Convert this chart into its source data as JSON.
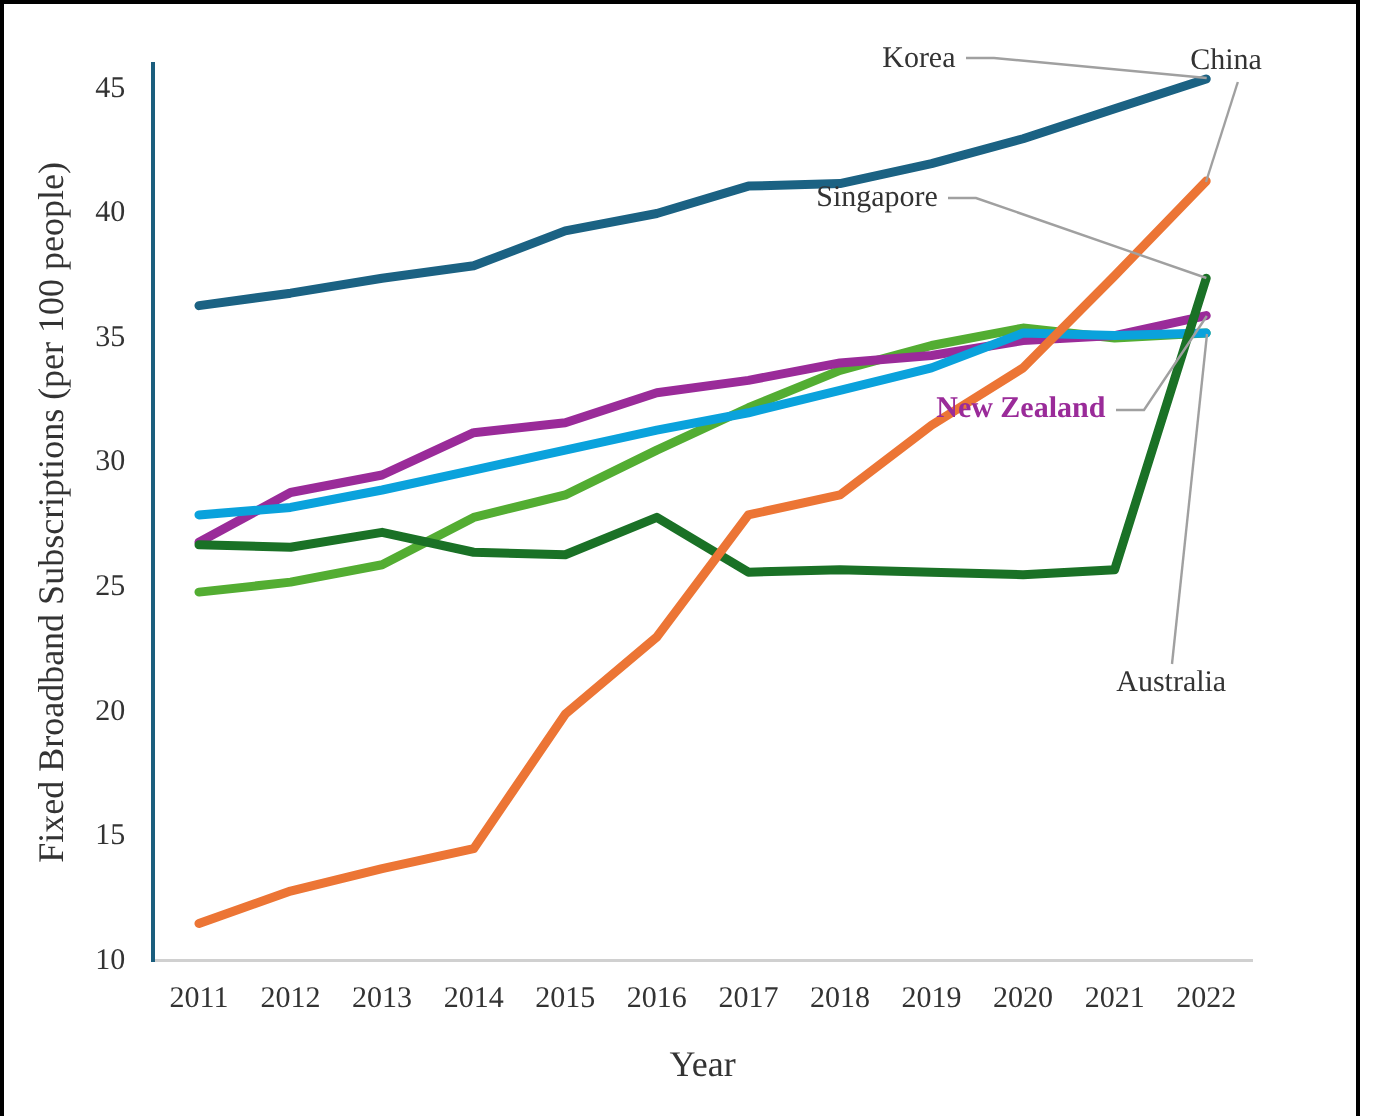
{
  "chart_data": {
    "type": "line",
    "xlabel": "Year",
    "ylabel": "Fixed Broadband Subscriptions (per 100 people)",
    "categories": [
      "2011",
      "2012",
      "2013",
      "2014",
      "2015",
      "2016",
      "2017",
      "2018",
      "2019",
      "2020",
      "2021",
      "2022"
    ],
    "ylim": [
      10,
      46
    ],
    "yticks": [
      10,
      15,
      20,
      25,
      30,
      35,
      40,
      45
    ],
    "grid": false,
    "legend": false,
    "marker": "none",
    "line_style": "solid",
    "series": [
      {
        "name": "Korea",
        "color": "#1b6283",
        "values": [
          36.3,
          36.8,
          37.4,
          37.9,
          39.3,
          40.0,
          41.1,
          41.2,
          42.0,
          43.0,
          44.2,
          45.4
        ]
      },
      {
        "name": "China",
        "color": "#ec7535",
        "values": [
          11.5,
          12.8,
          13.7,
          14.5,
          19.9,
          23.0,
          27.9,
          28.7,
          31.5,
          33.8,
          37.5,
          41.3
        ]
      },
      {
        "name": "Singapore",
        "color": "#1a7126",
        "values": [
          26.7,
          26.6,
          27.2,
          26.4,
          26.3,
          27.8,
          25.6,
          25.7,
          25.6,
          25.5,
          25.7,
          37.4
        ]
      },
      {
        "color": "#0aa2dc",
        "values": [
          27.9,
          28.2,
          28.9,
          29.7,
          30.5,
          31.3,
          32.0,
          32.9,
          33.8,
          35.2,
          35.1,
          35.2
        ]
      },
      {
        "name": "New Zealand",
        "color": "#9a2b99",
        "values": [
          26.8,
          28.8,
          29.5,
          31.2,
          31.6,
          32.8,
          33.3,
          34.0,
          34.3,
          34.9,
          35.1,
          35.9
        ]
      },
      {
        "name": "Australia",
        "color": "#53ad32",
        "values": [
          24.8,
          25.2,
          25.9,
          27.8,
          28.7,
          30.5,
          32.2,
          33.7,
          34.7,
          35.4,
          35.0,
          35.2
        ]
      }
    ]
  }
}
